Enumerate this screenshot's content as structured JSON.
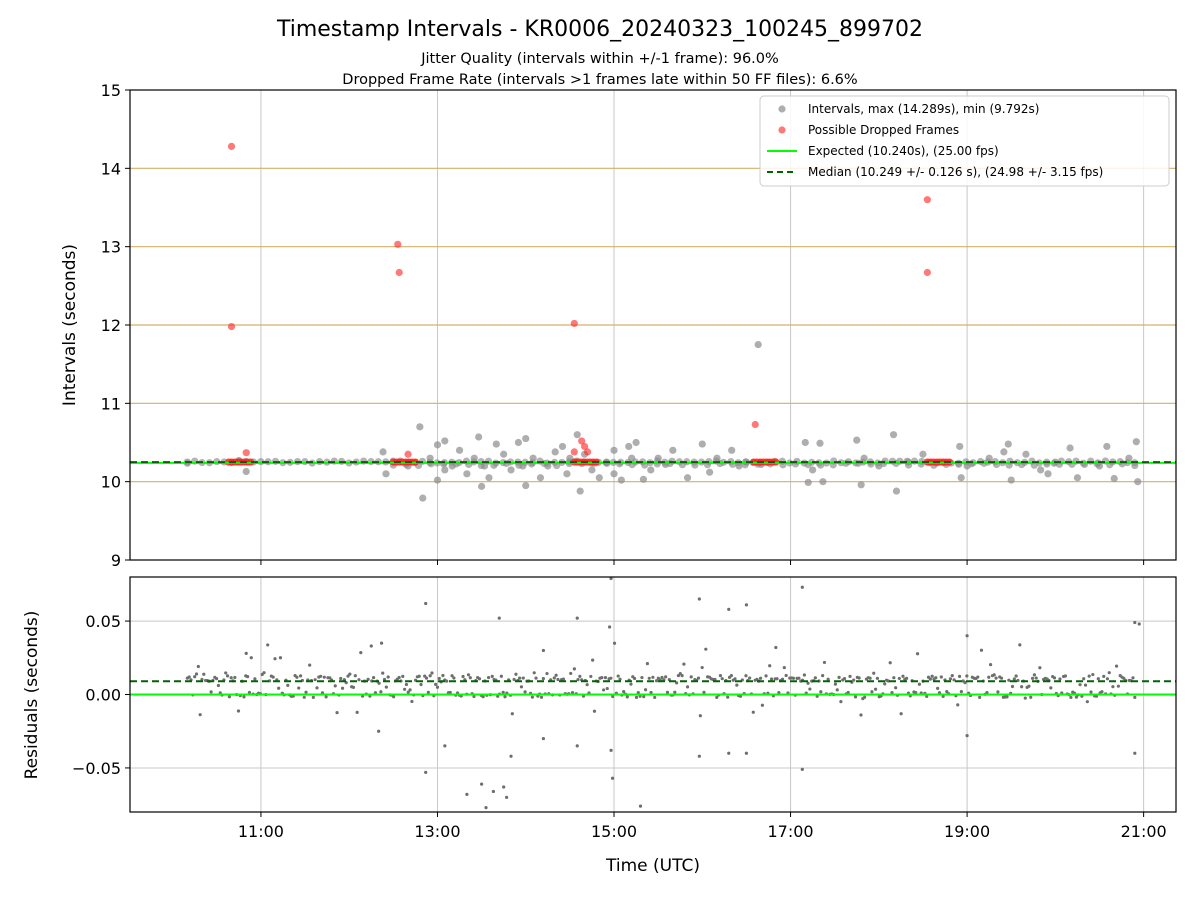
{
  "title": "Timestamp Intervals - KR0006_20240323_100245_899702",
  "subtitle_1": "Jitter Quality (intervals within +/-1 frame): 96.0%",
  "subtitle_2": "Dropped Frame Rate (intervals >1 frames late within 50 FF files): 6.6%",
  "colors": {
    "intervals": "#8c8c8c",
    "dropped": "#ff2020",
    "expected": "#00ff00",
    "median": "#006400",
    "band_lines": "#d4b16a",
    "grid": "#c8c8c8"
  },
  "chart_data": [
    {
      "type": "scatter",
      "name": "intervals",
      "ylabel": "Intervals (seconds)",
      "xlabel": "",
      "xlim": [
        "10:00",
        "21:00"
      ],
      "ylim": [
        9,
        15
      ],
      "y_ticks": [
        "9",
        "10",
        "11",
        "12",
        "13",
        "14",
        "15"
      ],
      "x_ticks": [
        "11:00",
        "13:00",
        "15:00",
        "17:00",
        "19:00",
        "21:00"
      ],
      "grid": true,
      "reference_lines": [
        10,
        11,
        12,
        13,
        14
      ],
      "legend_position": "top-right",
      "legend": [
        "Intervals, max (14.289s), min (9.792s)",
        "Possible Dropped Frames",
        "Expected (10.240s), (25.00 fps)",
        "Median (10.249 +/- 0.126 s), (24.98 +/- 3.15 fps)"
      ],
      "expected": 10.24,
      "median": 10.249,
      "dense_runs": [
        {
          "x_start": "10:10",
          "x_end": "20:54",
          "y": 10.25,
          "count": 130
        },
        {
          "x_start": "12:30",
          "x_end": "20:54",
          "y": 10.22,
          "count": 60
        }
      ],
      "series": [
        {
          "name": "Intervals",
          "points": [
            {
              "x": "10:10",
              "y": 10.25
            },
            {
              "x": "10:45",
              "y": 10.27
            },
            {
              "x": "10:50",
              "y": 10.13
            },
            {
              "x": "12:23",
              "y": 10.38
            },
            {
              "x": "12:25",
              "y": 10.1
            },
            {
              "x": "12:40",
              "y": 10.2
            },
            {
              "x": "12:48",
              "y": 10.7
            },
            {
              "x": "12:50",
              "y": 9.79
            },
            {
              "x": "12:55",
              "y": 10.3
            },
            {
              "x": "13:00",
              "y": 10.47
            },
            {
              "x": "13:00",
              "y": 10.02
            },
            {
              "x": "13:05",
              "y": 10.15
            },
            {
              "x": "13:05",
              "y": 10.52
            },
            {
              "x": "13:10",
              "y": 10.2
            },
            {
              "x": "13:15",
              "y": 10.4
            },
            {
              "x": "13:20",
              "y": 10.1
            },
            {
              "x": "13:25",
              "y": 10.3
            },
            {
              "x": "13:28",
              "y": 10.57
            },
            {
              "x": "13:30",
              "y": 9.94
            },
            {
              "x": "13:32",
              "y": 10.2
            },
            {
              "x": "13:35",
              "y": 10.05
            },
            {
              "x": "13:40",
              "y": 10.48
            },
            {
              "x": "13:45",
              "y": 10.35
            },
            {
              "x": "13:50",
              "y": 10.15
            },
            {
              "x": "13:55",
              "y": 10.5
            },
            {
              "x": "13:58",
              "y": 10.2
            },
            {
              "x": "14:00",
              "y": 10.55
            },
            {
              "x": "14:00",
              "y": 9.95
            },
            {
              "x": "14:05",
              "y": 10.3
            },
            {
              "x": "14:10",
              "y": 10.05
            },
            {
              "x": "14:15",
              "y": 10.2
            },
            {
              "x": "14:20",
              "y": 10.38
            },
            {
              "x": "14:25",
              "y": 10.45
            },
            {
              "x": "14:28",
              "y": 10.1
            },
            {
              "x": "14:30",
              "y": 10.3
            },
            {
              "x": "14:35",
              "y": 10.6
            },
            {
              "x": "14:37",
              "y": 9.88
            },
            {
              "x": "14:40",
              "y": 10.35
            },
            {
              "x": "14:45",
              "y": 10.15
            },
            {
              "x": "14:50",
              "y": 10.05
            },
            {
              "x": "14:55",
              "y": 10.25
            },
            {
              "x": "15:00",
              "y": 10.1
            },
            {
              "x": "15:00",
              "y": 10.4
            },
            {
              "x": "15:05",
              "y": 10.02
            },
            {
              "x": "15:10",
              "y": 10.45
            },
            {
              "x": "15:12",
              "y": 10.3
            },
            {
              "x": "15:15",
              "y": 10.5
            },
            {
              "x": "15:20",
              "y": 10.03
            },
            {
              "x": "15:25",
              "y": 10.15
            },
            {
              "x": "15:30",
              "y": 10.3
            },
            {
              "x": "15:35",
              "y": 10.22
            },
            {
              "x": "15:40",
              "y": 10.4
            },
            {
              "x": "15:50",
              "y": 10.05
            },
            {
              "x": "16:00",
              "y": 10.48
            },
            {
              "x": "16:05",
              "y": 10.12
            },
            {
              "x": "16:10",
              "y": 10.3
            },
            {
              "x": "16:20",
              "y": 10.4
            },
            {
              "x": "16:25",
              "y": 10.2
            },
            {
              "x": "16:30",
              "y": 10.25
            },
            {
              "x": "16:38",
              "y": 11.75
            },
            {
              "x": "16:40",
              "y": 10.22
            },
            {
              "x": "17:10",
              "y": 10.5
            },
            {
              "x": "17:12",
              "y": 9.99
            },
            {
              "x": "17:15",
              "y": 10.15
            },
            {
              "x": "17:20",
              "y": 10.49
            },
            {
              "x": "17:22",
              "y": 10.0
            },
            {
              "x": "17:45",
              "y": 10.53
            },
            {
              "x": "17:48",
              "y": 9.96
            },
            {
              "x": "17:50",
              "y": 10.3
            },
            {
              "x": "18:00",
              "y": 10.2
            },
            {
              "x": "18:10",
              "y": 10.6
            },
            {
              "x": "18:12",
              "y": 9.88
            },
            {
              "x": "18:20",
              "y": 10.25
            },
            {
              "x": "18:30",
              "y": 10.35
            },
            {
              "x": "18:55",
              "y": 10.45
            },
            {
              "x": "18:56",
              "y": 10.05
            },
            {
              "x": "19:00",
              "y": 10.2
            },
            {
              "x": "19:15",
              "y": 10.3
            },
            {
              "x": "19:25",
              "y": 10.38
            },
            {
              "x": "19:28",
              "y": 10.48
            },
            {
              "x": "19:30",
              "y": 10.02
            },
            {
              "x": "19:40",
              "y": 10.35
            },
            {
              "x": "19:50",
              "y": 10.15
            },
            {
              "x": "19:55",
              "y": 10.1
            },
            {
              "x": "20:00",
              "y": 10.25
            },
            {
              "x": "20:10",
              "y": 10.43
            },
            {
              "x": "20:15",
              "y": 10.05
            },
            {
              "x": "20:30",
              "y": 10.2
            },
            {
              "x": "20:35",
              "y": 10.45
            },
            {
              "x": "20:40",
              "y": 10.04
            },
            {
              "x": "20:50",
              "y": 10.3
            },
            {
              "x": "20:55",
              "y": 10.51
            },
            {
              "x": "20:56",
              "y": 10.0
            }
          ]
        },
        {
          "name": "Possible Dropped Frames",
          "points": [
            {
              "x": "10:40",
              "y": 14.28
            },
            {
              "x": "10:40",
              "y": 11.98
            },
            {
              "x": "10:50",
              "y": 10.37
            },
            {
              "x": "12:33",
              "y": 13.03
            },
            {
              "x": "12:34",
              "y": 12.67
            },
            {
              "x": "12:40",
              "y": 10.35
            },
            {
              "x": "14:33",
              "y": 12.02
            },
            {
              "x": "14:33",
              "y": 10.38
            },
            {
              "x": "14:38",
              "y": 10.52
            },
            {
              "x": "14:40",
              "y": 10.45
            },
            {
              "x": "14:42",
              "y": 10.38
            },
            {
              "x": "16:36",
              "y": 10.73
            },
            {
              "x": "18:33",
              "y": 13.6
            },
            {
              "x": "18:33",
              "y": 12.67
            }
          ],
          "clusters": [
            {
              "x_start": "10:38",
              "x_end": "10:53",
              "y": 10.25
            },
            {
              "x_start": "12:30",
              "x_end": "12:45",
              "y": 10.25
            },
            {
              "x_start": "14:33",
              "x_end": "14:48",
              "y": 10.25
            },
            {
              "x_start": "16:35",
              "x_end": "16:50",
              "y": 10.25
            },
            {
              "x_start": "18:33",
              "x_end": "18:48",
              "y": 10.25
            }
          ]
        }
      ]
    },
    {
      "type": "scatter",
      "name": "residuals",
      "ylabel": "Residuals (seconds)",
      "xlabel": "Time (UTC)",
      "xlim": [
        "10:00",
        "21:00"
      ],
      "ylim": [
        -0.08,
        0.08
      ],
      "y_ticks": [
        "−0.05",
        "0.00",
        "0.05"
      ],
      "x_ticks": [
        "11:00",
        "13:00",
        "15:00",
        "17:00",
        "19:00",
        "21:00"
      ],
      "grid": true,
      "expected": 0.0,
      "median": 0.009,
      "noise_band": {
        "x_start": "10:10",
        "x_end": "20:54",
        "y_top": 0.011,
        "y_mid": 0.009,
        "y_low": 0.0,
        "y_min": -0.015,
        "y_max": 0.035
      },
      "outliers": [
        {
          "x": "12:52",
          "y": 0.062
        },
        {
          "x": "12:52",
          "y": -0.053
        },
        {
          "x": "13:05",
          "y": -0.035
        },
        {
          "x": "13:20",
          "y": -0.068
        },
        {
          "x": "13:30",
          "y": -0.061
        },
        {
          "x": "13:33",
          "y": -0.077
        },
        {
          "x": "13:38",
          "y": -0.066
        },
        {
          "x": "13:42",
          "y": 0.052
        },
        {
          "x": "13:45",
          "y": -0.063
        },
        {
          "x": "13:47",
          "y": -0.07
        },
        {
          "x": "13:50",
          "y": -0.042
        },
        {
          "x": "14:35",
          "y": 0.052
        },
        {
          "x": "14:35",
          "y": -0.035
        },
        {
          "x": "14:57",
          "y": 0.046
        },
        {
          "x": "14:58",
          "y": 0.079
        },
        {
          "x": "14:58",
          "y": -0.038
        },
        {
          "x": "14:59",
          "y": -0.057
        },
        {
          "x": "15:18",
          "y": -0.076
        },
        {
          "x": "15:58",
          "y": 0.065
        },
        {
          "x": "15:58",
          "y": -0.042
        },
        {
          "x": "16:18",
          "y": 0.058
        },
        {
          "x": "16:18",
          "y": -0.04
        },
        {
          "x": "16:30",
          "y": 0.061
        },
        {
          "x": "16:30",
          "y": -0.04
        },
        {
          "x": "17:08",
          "y": 0.073
        },
        {
          "x": "17:08",
          "y": -0.051
        },
        {
          "x": "20:54",
          "y": 0.049
        },
        {
          "x": "20:54",
          "y": -0.04
        },
        {
          "x": "20:57",
          "y": 0.048
        },
        {
          "x": "12:22",
          "y": 0.035
        },
        {
          "x": "12:15",
          "y": 0.033
        },
        {
          "x": "12:20",
          "y": -0.025
        },
        {
          "x": "10:50",
          "y": 0.028
        },
        {
          "x": "14:12",
          "y": 0.03
        },
        {
          "x": "14:12",
          "y": -0.03
        },
        {
          "x": "16:50",
          "y": 0.032
        },
        {
          "x": "19:00",
          "y": 0.04
        },
        {
          "x": "19:00",
          "y": -0.028
        }
      ]
    }
  ]
}
